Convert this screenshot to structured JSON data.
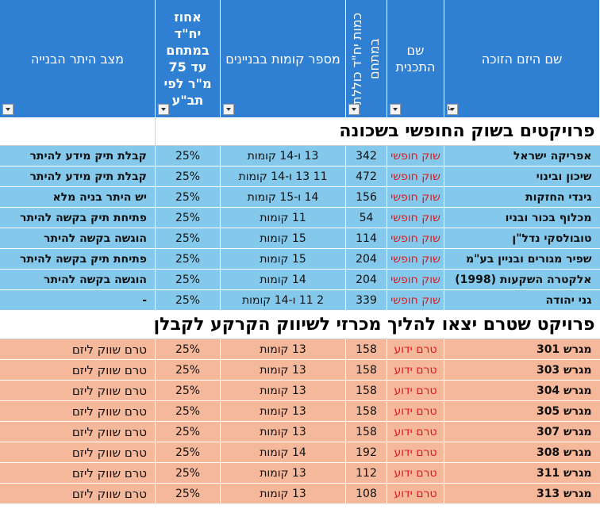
{
  "headers": {
    "developer": "שם היזם הזוכה",
    "plan": "שם התכנית",
    "units": "כמות יח\"ד כוללת במתחם",
    "floors": "מספר קומות בבניינים",
    "percent": "אחוז יח\"ד במתחם עד 75 מ\"ר לפי תב\"ע",
    "status": "מצב היתר הבנייה"
  },
  "section1_title": "פרויקטים בשוק החופשי בשכונה",
  "section2_title": "פרויקט שטרם יצאו להליך מכרזי לשיווק הקרקע לקבלן",
  "free_market_rows": [
    {
      "developer": "אפריקה ישראל",
      "plan": "שוק חופשי",
      "units": "342",
      "floors": "13 ו-14 קומות",
      "percent": "25%",
      "status": "קבלת תיק מידע להיתר"
    },
    {
      "developer": "שיכון ובינוי",
      "plan": "שוק חופשי",
      "units": "472",
      "floors": "11 13 ו-14 קומות",
      "percent": "25%",
      "status": "קבלת תיק מידע להיתר"
    },
    {
      "developer": "גינדי החזקות",
      "plan": "שוק חופשי",
      "units": "156",
      "floors": "14 ו-15 קומות",
      "percent": "25%",
      "status": "יש היתר בניה מלא"
    },
    {
      "developer": "מכלוף בכור ובניו",
      "plan": "שוק חופשי",
      "units": "54",
      "floors": "11 קומות",
      "percent": "25%",
      "status": "פתיחת תיק בקשה להיתר"
    },
    {
      "developer": "טובולסקי נדל\"ן",
      "plan": "שוק חופשי",
      "units": "114",
      "floors": "15 קומות",
      "percent": "25%",
      "status": "הוגשה בקשה להיתר"
    },
    {
      "developer": "שפיר מגורים ובניין בע\"מ",
      "plan": "שוק חופשי",
      "units": "204",
      "floors": "15 קומות",
      "percent": "25%",
      "status": "פתיחת תיק בקשה להיתר"
    },
    {
      "developer": "אלקטרה השקעות (1998)",
      "plan": "שוק חופשי",
      "units": "204",
      "floors": "14 קומות",
      "percent": "25%",
      "status": "הוגשה בקשה להיתר"
    },
    {
      "developer": "גני יהודה",
      "plan": "שוק חופשי",
      "units": "339",
      "floors": "2 11 ו-14 קומות",
      "percent": "25%",
      "status": "-"
    }
  ],
  "tender_rows": [
    {
      "developer": "מגרש 301",
      "plan": "טרם ידוע",
      "units": "158",
      "floors": "13 קומות",
      "percent": "25%",
      "status": "טרם שווק ליזם"
    },
    {
      "developer": "מגרש 303",
      "plan": "טרם ידוע",
      "units": "158",
      "floors": "13 קומות",
      "percent": "25%",
      "status": "טרם שווק ליזם"
    },
    {
      "developer": "מגרש 304",
      "plan": "טרם ידוע",
      "units": "158",
      "floors": "13 קומות",
      "percent": "25%",
      "status": "טרם שווק ליזם"
    },
    {
      "developer": "מגרש 305",
      "plan": "טרם ידוע",
      "units": "158",
      "floors": "13 קומות",
      "percent": "25%",
      "status": "טרם שווק ליזם"
    },
    {
      "developer": "מגרש 307",
      "plan": "טרם ידוע",
      "units": "158",
      "floors": "13 קומות",
      "percent": "25%",
      "status": "טרם שווק ליזם"
    },
    {
      "developer": "מגרש 308",
      "plan": "טרם ידוע",
      "units": "192",
      "floors": "14 קומות",
      "percent": "25%",
      "status": "טרם שווק ליזם"
    },
    {
      "developer": "מגרש 311",
      "plan": "טרם ידוע",
      "units": "112",
      "floors": "13 קומות",
      "percent": "25%",
      "status": "טרם שווק ליזם"
    },
    {
      "developer": "מגרש 313",
      "plan": "טרם ידוע",
      "units": "108",
      "floors": "13 קומות",
      "percent": "25%",
      "status": "טרם שווק ליזם"
    }
  ],
  "colors": {
    "header": "#2f7fd3",
    "free_market_row": "#84c9ec",
    "tender_row": "#f6b89b",
    "plan_text": "#e3171b"
  }
}
